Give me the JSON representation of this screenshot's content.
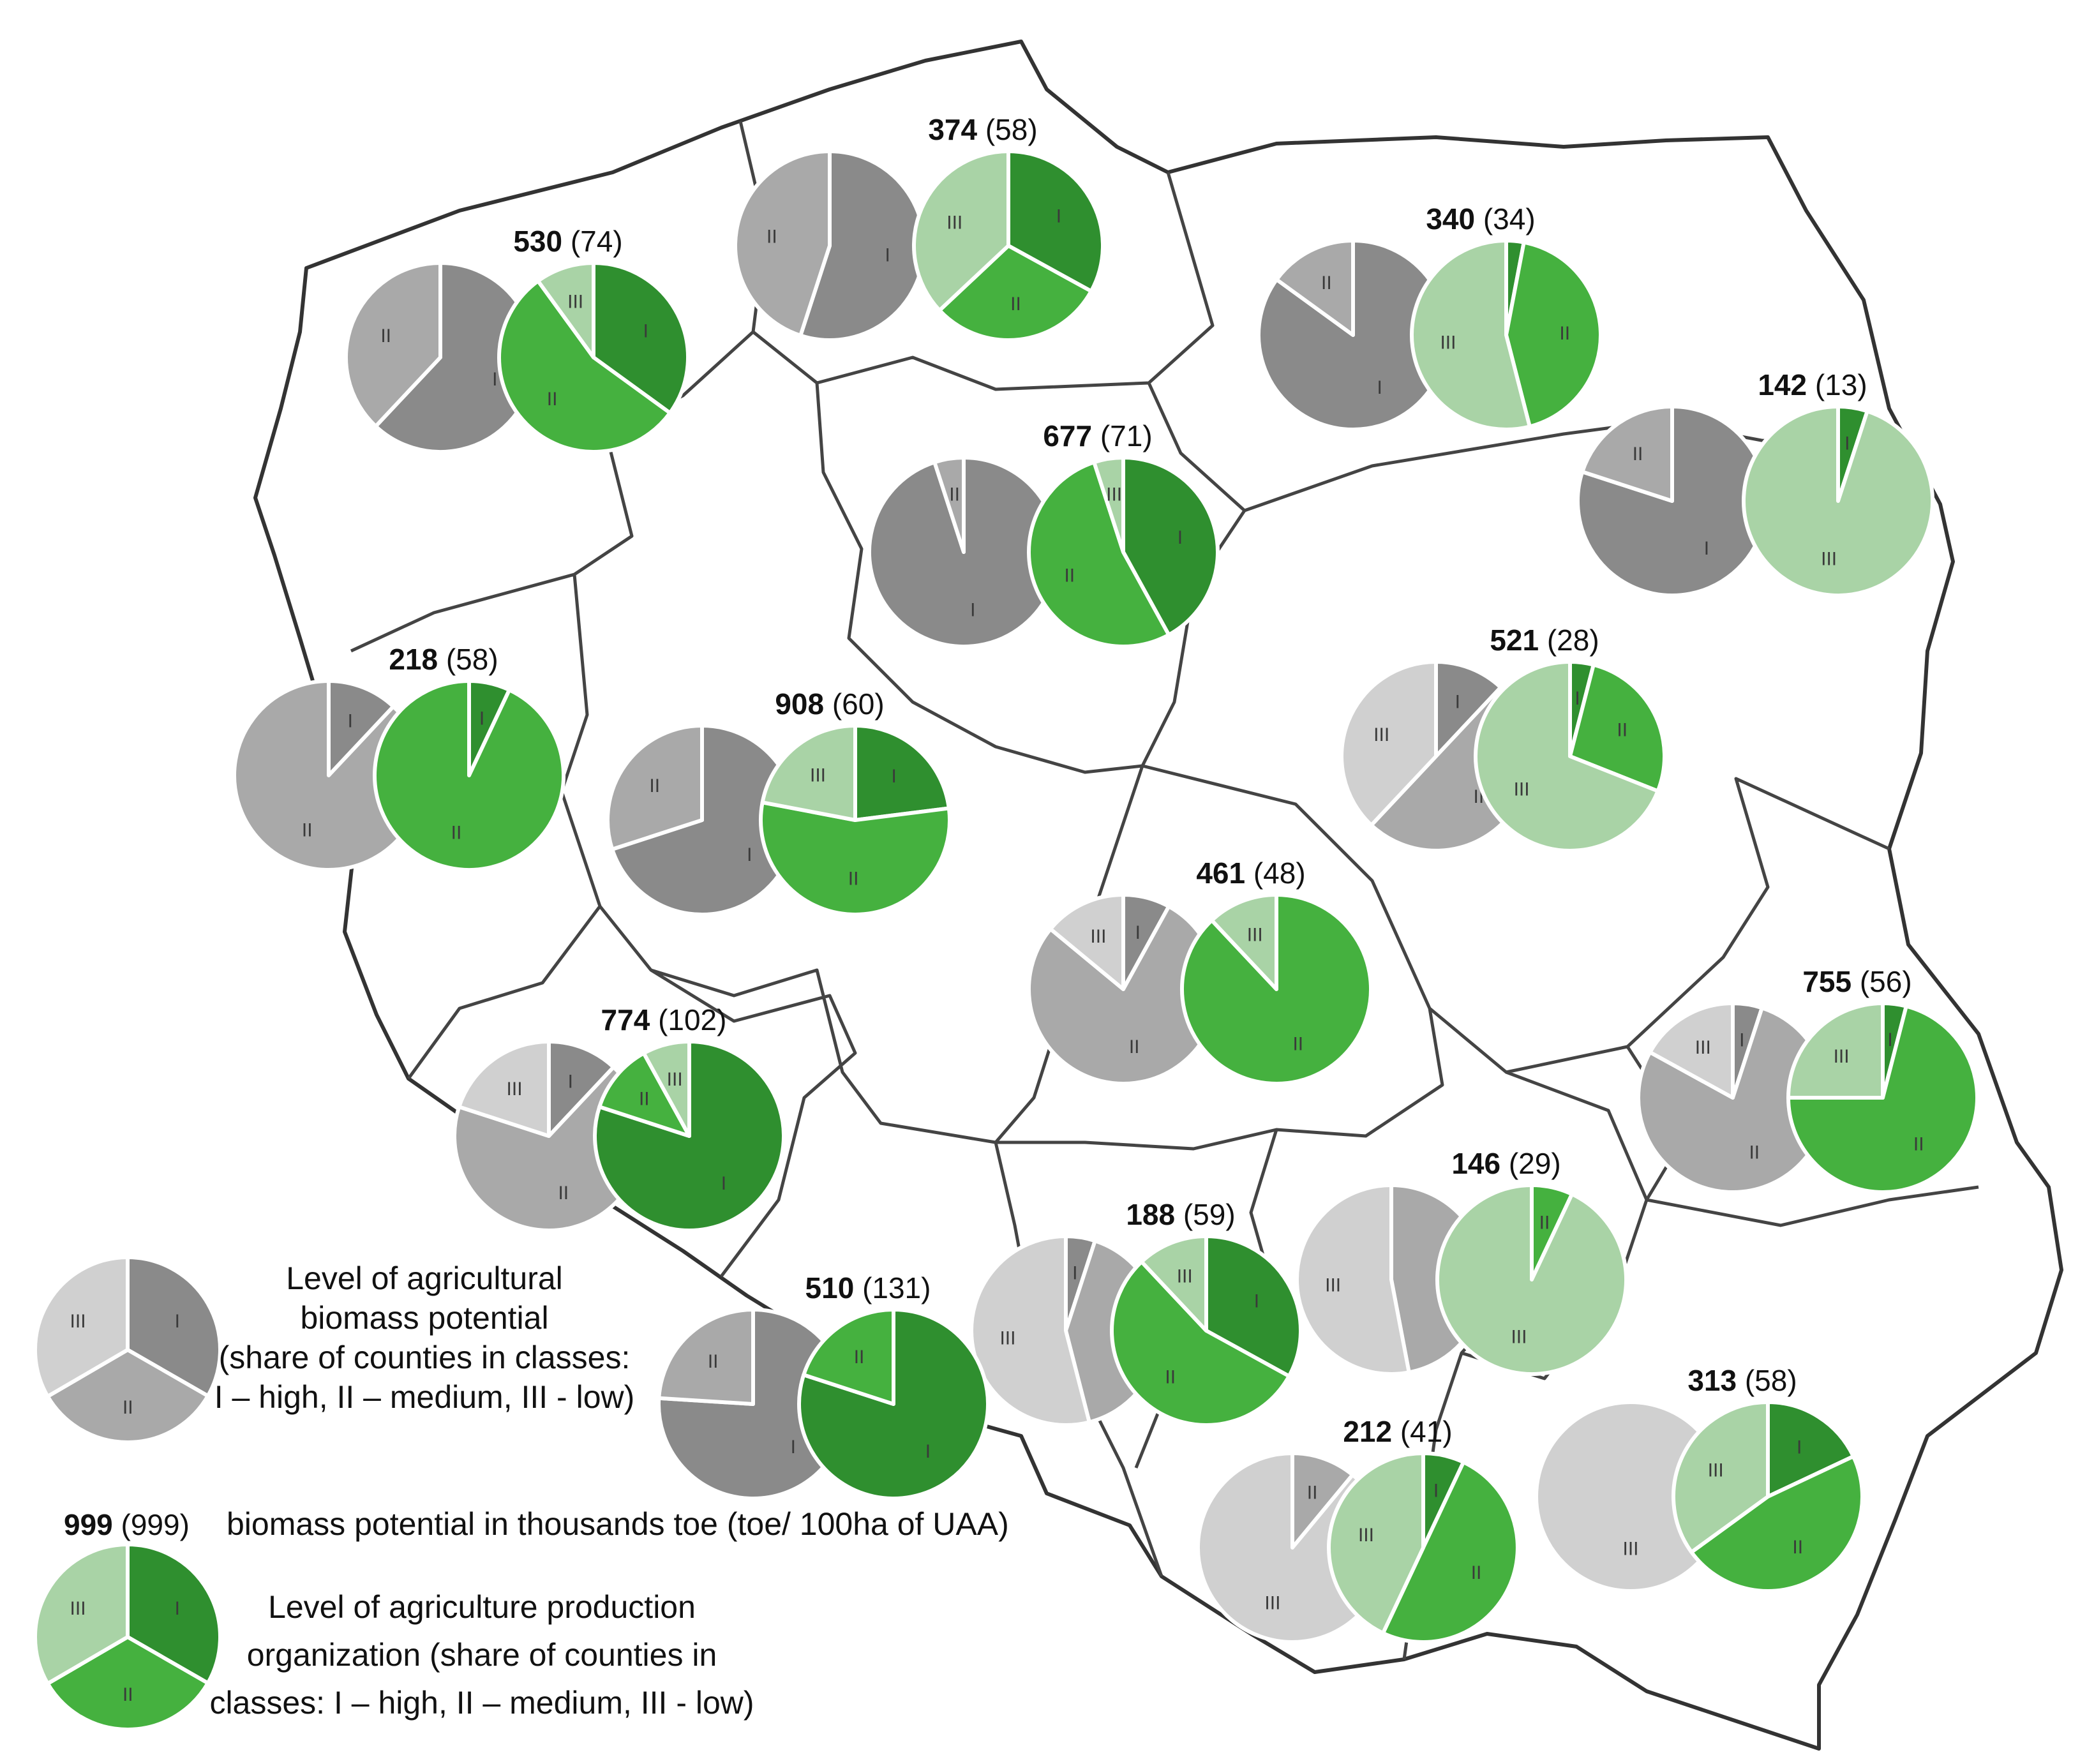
{
  "class_names": [
    "I",
    "II",
    "III"
  ],
  "colors": {
    "biomass": [
      "#8a8a8a",
      "#a9a9a9",
      "#d0d0d0"
    ],
    "organization": [
      "#2f8f2f",
      "#45b13f",
      "#a9d3a6"
    ]
  },
  "regions": [
    {
      "value": "530",
      "density": "(74)",
      "biomass": [
        0.62,
        0.38,
        0.0
      ],
      "organization": [
        0.35,
        0.55,
        0.1
      ]
    },
    {
      "value": "374",
      "density": "(58)",
      "biomass": [
        0.55,
        0.45,
        0.0
      ],
      "organization": [
        0.33,
        0.3,
        0.37
      ]
    },
    {
      "value": "340",
      "density": "(34)",
      "biomass": [
        0.85,
        0.15,
        0.0
      ],
      "organization": [
        0.03,
        0.43,
        0.54
      ]
    },
    {
      "value": "677",
      "density": "(71)",
      "biomass": [
        0.95,
        0.05,
        0.0
      ],
      "organization": [
        0.42,
        0.53,
        0.05
      ]
    },
    {
      "value": "142",
      "density": "(13)",
      "biomass": [
        0.8,
        0.2,
        0.0
      ],
      "organization": [
        0.05,
        0.0,
        0.95
      ]
    },
    {
      "value": "218",
      "density": "(58)",
      "biomass": [
        0.12,
        0.88,
        0.0
      ],
      "organization": [
        0.07,
        0.93,
        0.0
      ]
    },
    {
      "value": "908",
      "density": "(60)",
      "biomass": [
        0.7,
        0.3,
        0.0
      ],
      "organization": [
        0.23,
        0.55,
        0.22
      ]
    },
    {
      "value": "521",
      "density": "(28)",
      "biomass": [
        0.12,
        0.5,
        0.38
      ],
      "organization": [
        0.04,
        0.27,
        0.69
      ]
    },
    {
      "value": "461",
      "density": "(48)",
      "biomass": [
        0.08,
        0.78,
        0.14
      ],
      "organization": [
        0.0,
        0.88,
        0.12
      ]
    },
    {
      "value": "774",
      "density": "(102)",
      "biomass": [
        0.12,
        0.68,
        0.2
      ],
      "organization": [
        0.8,
        0.12,
        0.08
      ]
    },
    {
      "value": "755",
      "density": "(56)",
      "biomass": [
        0.05,
        0.78,
        0.17
      ],
      "organization": [
        0.04,
        0.71,
        0.25
      ]
    },
    {
      "value": "188",
      "density": "(59)",
      "biomass": [
        0.05,
        0.41,
        0.54
      ],
      "organization": [
        0.33,
        0.55,
        0.12
      ]
    },
    {
      "value": "146",
      "density": "(29)",
      "biomass": [
        0.0,
        0.47,
        0.53
      ],
      "organization": [
        0.0,
        0.07,
        0.93
      ]
    },
    {
      "value": "510",
      "density": "(131)",
      "biomass": [
        0.76,
        0.24,
        0.0
      ],
      "organization": [
        0.8,
        0.2,
        0.0
      ]
    },
    {
      "value": "212",
      "density": "(41)",
      "biomass": [
        0.0,
        0.11,
        0.89
      ],
      "organization": [
        0.07,
        0.5,
        0.43
      ]
    },
    {
      "value": "313",
      "density": "(58)",
      "biomass": [
        0.0,
        0.0,
        1.0
      ],
      "organization": [
        0.18,
        0.47,
        0.35
      ]
    }
  ],
  "legend": {
    "biomass_title": [
      "Level of agricultural",
      "biomass  potential",
      "(share of counties in classes:",
      "I – high, II – medium, III - low)"
    ],
    "value_example": "999",
    "density_example": "(999)",
    "value_description": "biomass  potential in thousands toe (toe/ 100ha of UAA)",
    "organization_title": [
      "Level of agriculture production",
      "organization  (share of counties in",
      "classes: I – high, II – medium, III - low)"
    ],
    "biomass_example": [
      0.333,
      0.333,
      0.334
    ],
    "organization_example": [
      0.333,
      0.333,
      0.334
    ]
  }
}
